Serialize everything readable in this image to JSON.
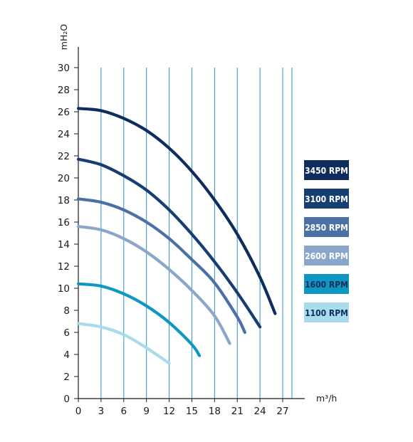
{
  "chart_data": {
    "type": "line",
    "title": "",
    "xlabel": "m³/h",
    "ylabel": "mH₂O",
    "xlim": [
      0,
      27
    ],
    "ylim": [
      0,
      30
    ],
    "x_ticks": [
      "0",
      "3",
      "6",
      "9",
      "12",
      "15",
      "18",
      "21",
      "24",
      "27"
    ],
    "y_ticks": [
      "0",
      "2",
      "4",
      "6",
      "8",
      "10",
      "12",
      "14",
      "16",
      "18",
      "20",
      "22",
      "24",
      "26",
      "28",
      "30"
    ],
    "grid": "vertical",
    "legend_position": "right",
    "series": [
      {
        "name": "3450 RPM",
        "color": "#0f2d5c",
        "text_color": "#ffffff",
        "x": [
          0,
          3,
          6,
          9,
          12,
          15,
          18,
          21,
          24,
          26
        ],
        "y": [
          26.3,
          26.1,
          25.4,
          24.3,
          22.7,
          20.6,
          18.0,
          14.9,
          11.0,
          7.7
        ]
      },
      {
        "name": "3100 RPM",
        "color": "#163e73",
        "text_color": "#ffffff",
        "x": [
          0,
          3,
          6,
          9,
          12,
          15,
          18,
          21,
          24
        ],
        "y": [
          21.7,
          21.2,
          20.2,
          18.9,
          17.1,
          14.9,
          12.4,
          9.6,
          6.5
        ]
      },
      {
        "name": "2850 RPM",
        "color": "#4a70a6",
        "text_color": "#ffffff",
        "x": [
          0,
          3,
          6,
          9,
          12,
          15,
          18,
          21,
          22
        ],
        "y": [
          18.1,
          17.8,
          17.1,
          16.0,
          14.5,
          12.6,
          10.5,
          7.4,
          6.0
        ]
      },
      {
        "name": "2600 RPM",
        "color": "#8aa7cb",
        "text_color": "#ffffff",
        "x": [
          0,
          3,
          6,
          9,
          12,
          15,
          18,
          20
        ],
        "y": [
          15.6,
          15.3,
          14.5,
          13.3,
          11.7,
          9.8,
          7.5,
          5.0
        ]
      },
      {
        "name": "1600 RPM",
        "color": "#0f97c4",
        "text_color": "#0f2d5c",
        "x": [
          0,
          3,
          6,
          9,
          12,
          15,
          16
        ],
        "y": [
          10.4,
          10.2,
          9.5,
          8.4,
          6.9,
          4.9,
          3.9
        ]
      },
      {
        "name": "1100 RPM",
        "color": "#a8dcec",
        "text_color": "#0f2d5c",
        "x": [
          0,
          3,
          6,
          9,
          12
        ],
        "y": [
          6.8,
          6.5,
          5.8,
          4.6,
          3.2
        ]
      }
    ]
  },
  "colors": {
    "grid": "#2f8fd0",
    "axis": "#1a1a1a"
  }
}
